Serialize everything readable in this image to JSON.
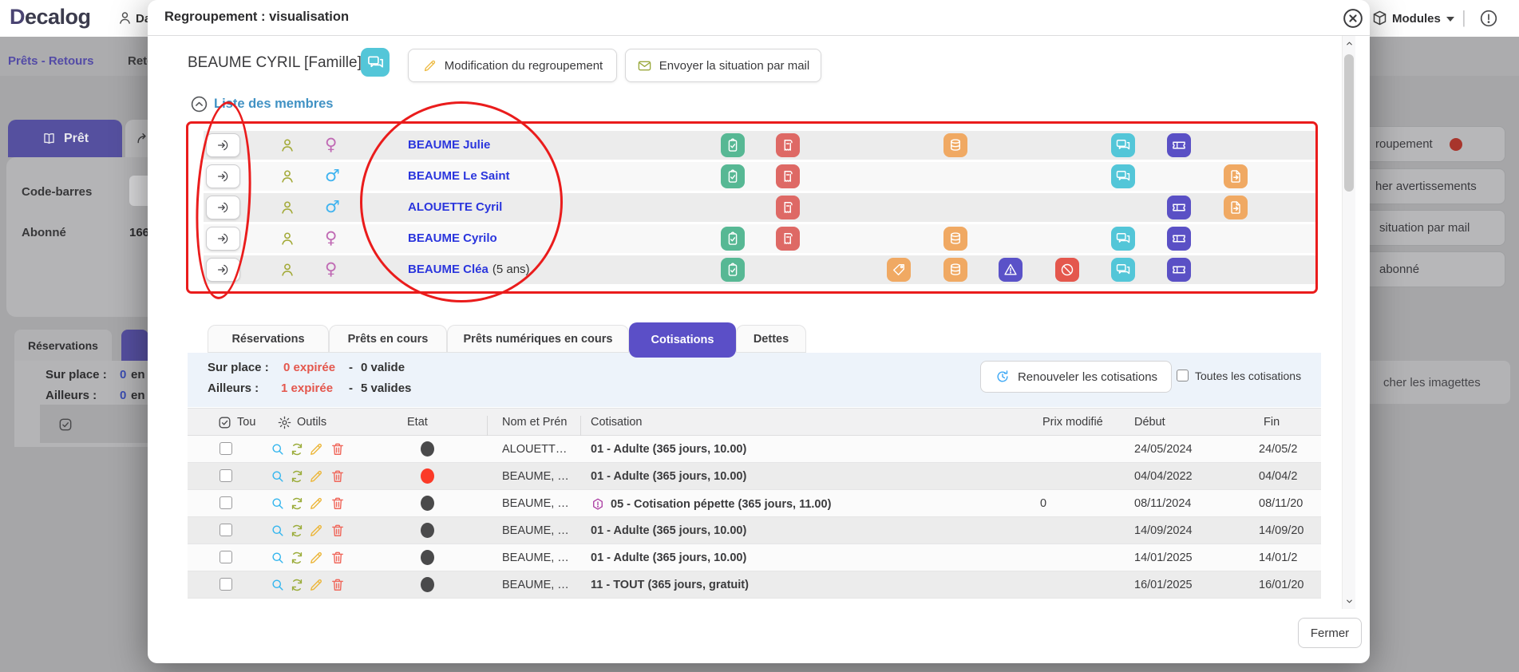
{
  "topbar": {
    "logo": "Decalog",
    "user": "Da",
    "modules": "Modules",
    "nav_active": "Prêts - Retours",
    "nav_other": "Reto"
  },
  "background": {
    "pret_tab": "Prêt",
    "code_barres_label": "Code-barres",
    "abonne_label": "Abonné",
    "abonne_value": "166",
    "reservations_tab": "Réservations",
    "sur_place_label": "Sur place :",
    "sur_place_value_num": "0",
    "sur_place_value_txt": "en",
    "ailleurs_label": "Ailleurs :",
    "ailleurs_value_num": "0",
    "ailleurs_value_txt": "en",
    "right_buttons": [
      {
        "label": "roupement",
        "dot": true
      },
      {
        "label": "her avertissements",
        "dot": false
      },
      {
        "label": "situation par mail",
        "dot": false
      },
      {
        "label": "abonné",
        "dot": false
      }
    ],
    "imagettes_button": "cher les imagettes"
  },
  "modal": {
    "title": "Regroupement : visualisation",
    "group_name": "BEAUME CYRIL [Famille]",
    "edit_button": "Modification du regroupement",
    "mail_button": "Envoyer la situation par mail",
    "members_title": "Liste des membres",
    "members": [
      {
        "name": "BEAUME Julie",
        "suffix": "",
        "gender": "female",
        "icons": [
          "clipboard",
          "receipt",
          "database",
          "chat",
          "ticket"
        ]
      },
      {
        "name": "BEAUME Le Saint",
        "suffix": "",
        "gender": "male",
        "icons": [
          "clipboard",
          "receipt",
          "chat",
          "file"
        ]
      },
      {
        "name": "ALOUETTE Cyril",
        "suffix": "",
        "gender": "male",
        "icons": [
          "receipt",
          "ticket",
          "file"
        ]
      },
      {
        "name": "BEAUME Cyrilo",
        "suffix": "",
        "gender": "female",
        "icons": [
          "clipboard",
          "receipt",
          "database",
          "chat",
          "ticket"
        ]
      },
      {
        "name": "BEAUME Cléa",
        "suffix": "(5 ans)",
        "gender": "female",
        "icons": [
          "clipboard",
          "tag",
          "database",
          "warning",
          "prohibited",
          "chat",
          "ticket"
        ]
      }
    ],
    "tabs": [
      {
        "label": "Réservations",
        "active": false
      },
      {
        "label": "Prêts en cours",
        "active": false
      },
      {
        "label": "Prêts numériques en cours",
        "active": false
      },
      {
        "label": "Cotisations",
        "active": true
      },
      {
        "label": "Dettes",
        "active": false
      }
    ],
    "summary": {
      "sur_place_label": "Sur place :",
      "sur_place_expired": "0 expirée",
      "dash": "-",
      "sur_place_valid": "0 valide",
      "ailleurs_label": "Ailleurs :",
      "ailleurs_expired": "1 expirée",
      "ailleurs_valid": "5 valides"
    },
    "toolbar": {
      "renew_button": "Renouveler les cotisations",
      "all_checkbox": "Toutes les cotisations"
    },
    "table": {
      "headers": {
        "select": "Tou",
        "tools": "Outils",
        "state": "Etat",
        "name": "Nom et Prén",
        "cotisation": "Cotisation",
        "price": "Prix modifié",
        "start": "Début",
        "end": "Fin"
      },
      "rows": [
        {
          "state": "dark",
          "name": "ALOUETT…",
          "cotisation": "01 - Adulte (365 jours, 10.00)",
          "style": "normal",
          "warning": false,
          "price": "",
          "start": "24/05/2024",
          "end": "24/05/2"
        },
        {
          "state": "red",
          "name": "BEAUME, …",
          "cotisation": "01 - Adulte (365 jours, 10.00)",
          "style": "expired",
          "warning": false,
          "price": "",
          "start": "04/04/2022",
          "end": "04/04/2"
        },
        {
          "state": "dark",
          "name": "BEAUME, …",
          "cotisation": "05 - Cotisation pépette (365 jours, 11.00)",
          "style": "special",
          "warning": true,
          "price": "0",
          "start": "08/11/2024",
          "end": "08/11/20"
        },
        {
          "state": "dark",
          "name": "BEAUME, …",
          "cotisation": "01 - Adulte (365 jours, 10.00)",
          "style": "normal",
          "warning": false,
          "price": "",
          "start": "14/09/2024",
          "end": "14/09/20"
        },
        {
          "state": "dark",
          "name": "BEAUME, …",
          "cotisation": "01 - Adulte (365 jours, 10.00)",
          "style": "normal",
          "warning": false,
          "price": "",
          "start": "14/01/2025",
          "end": "14/01/2"
        },
        {
          "state": "dark",
          "name": "BEAUME, …",
          "cotisation": "11 - TOUT (365 jours, gratuit)",
          "style": "normal",
          "warning": false,
          "price": "",
          "start": "16/01/2025",
          "end": "16/01/20"
        }
      ]
    },
    "close_button": "Fermer"
  },
  "colors": {
    "accent_purple": "#5b4fc7",
    "member_link_blue": "#2b36dd",
    "section_blue": "#4192c4",
    "annotation_red": "#ea1c1c",
    "expired_red": "#e4574d",
    "special_purple": "#a8359f",
    "chip_teal": "#53c6d8",
    "chip_green": "#57b894",
    "chip_red": "#de6965",
    "chip_orange": "#f0a963",
    "chip_indigo": "#5a52c8"
  }
}
